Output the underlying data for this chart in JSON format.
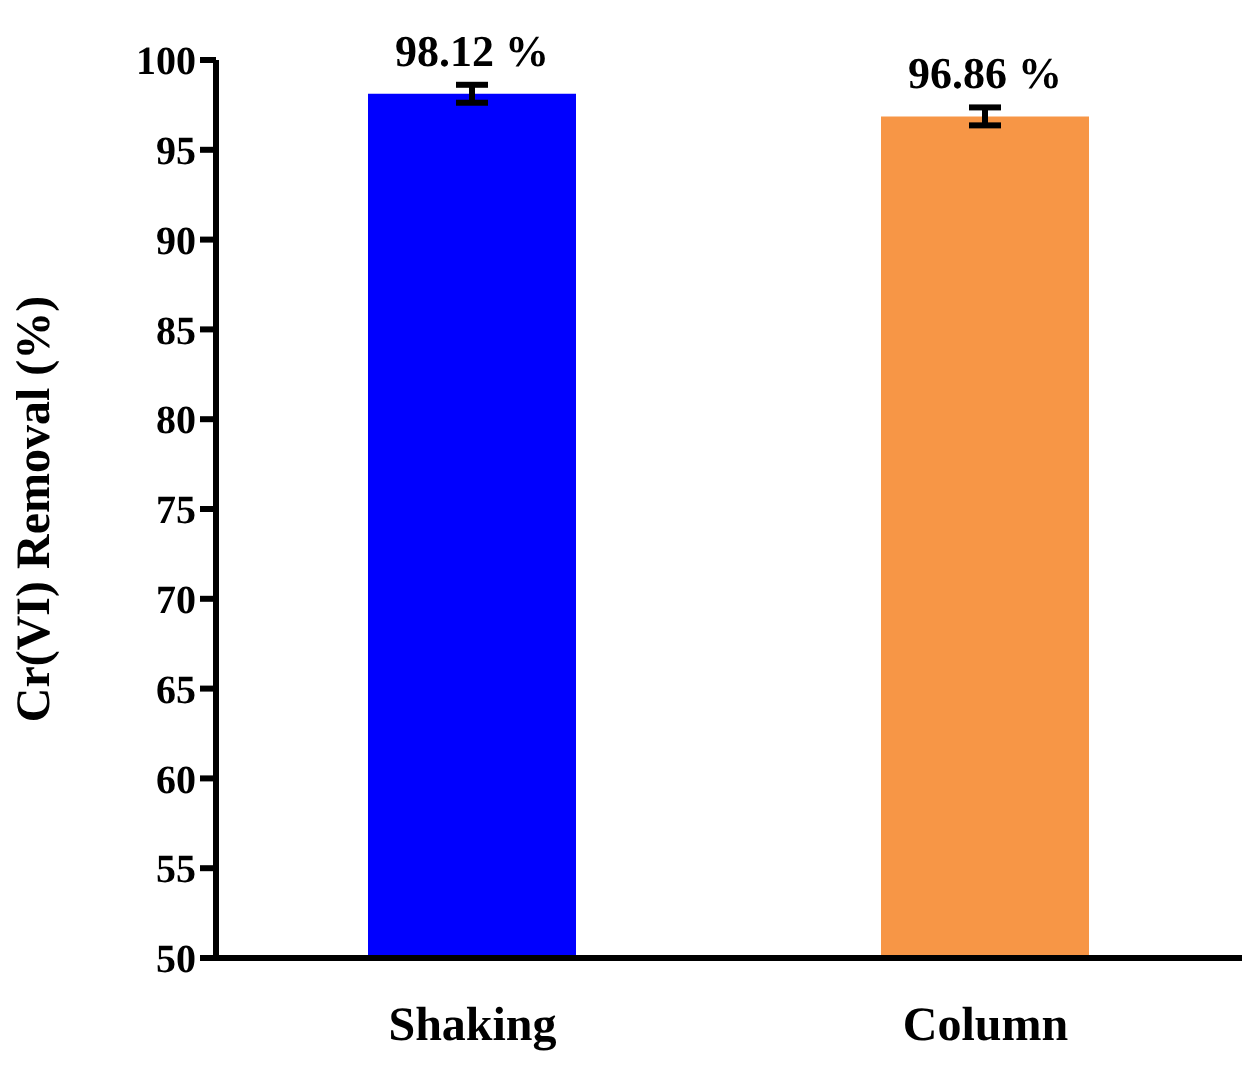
{
  "chart_data": {
    "type": "bar",
    "ylabel": "Cr(VI) Removal (%)",
    "categories": [
      "Shaking",
      "Column"
    ],
    "values": [
      98.12,
      96.86
    ],
    "colors": [
      "#0000ff",
      "#f79646"
    ],
    "errors": [
      0.5,
      0.5
    ],
    "value_labels": [
      "98.12 %",
      "96.86 %"
    ],
    "ylim": [
      50,
      100
    ],
    "yticks": [
      50,
      55,
      60,
      65,
      70,
      75,
      80,
      85,
      90,
      95,
      100
    ],
    "grid": false,
    "legend": false
  }
}
